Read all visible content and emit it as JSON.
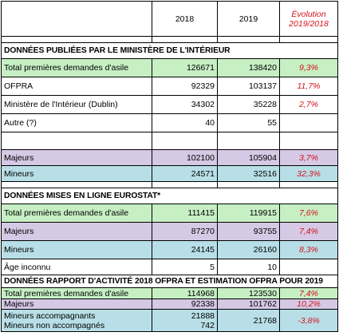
{
  "header": {
    "col_2018": "2018",
    "col_2019": "2019",
    "col_evo_line1": "Évolution",
    "col_evo_line2": "2019/2018"
  },
  "section1": {
    "title": "DONNÉES PUBLIÉES PAR LE MINISTÈRE DE L'INTÉRIEUR",
    "rows": [
      {
        "label": "Total premières demandes d'asile",
        "v2018": "126671",
        "v2019": "138420",
        "evo": "9,3%"
      },
      {
        "label": "OFPRA",
        "v2018": "92329",
        "v2019": "103137",
        "evo": "11,7%"
      },
      {
        "label": "Ministère de l'Intérieur (Dublin)",
        "v2018": "34302",
        "v2019": "35228",
        "evo": "2,7%"
      },
      {
        "label": "Autre (?)",
        "v2018": "40",
        "v2019": "55",
        "evo": ""
      },
      {
        "label": "Majeurs",
        "v2018": "102100",
        "v2019": "105904",
        "evo": "3,7%"
      },
      {
        "label": "Mineurs",
        "v2018": "24571",
        "v2019": "32516",
        "evo": "32,3%"
      }
    ]
  },
  "section2": {
    "title": "DONNÉES MISES EN LIGNE EUROSTAT*",
    "rows": [
      {
        "label": "Total premières demandes d'asile",
        "v2018": "111415",
        "v2019": "119915",
        "evo": "7,6%"
      },
      {
        "label": "Majeurs",
        "v2018": "87270",
        "v2019": "93755",
        "evo": "7,4%"
      },
      {
        "label": "Mineurs",
        "v2018": "24145",
        "v2019": "26160",
        "evo": "8,3%"
      },
      {
        "label": "Âge inconnu",
        "v2018": "5",
        "v2019": "10",
        "evo": ""
      }
    ]
  },
  "section3": {
    "title": "DONNÉES RAPPORT D'ACTIVITÉ 2018 OFPRA ET ESTIMATION OFPRA POUR 2019",
    "rows": [
      {
        "label": "Total premières demandes d'asile",
        "v2018": "114968",
        "v2019": "123530",
        "evo": "7,4%"
      },
      {
        "label": "Majeurs",
        "v2018": "92338",
        "v2019": "101762",
        "evo": "10,2%"
      }
    ],
    "minors": {
      "label1": "Mineurs accompagnants",
      "label2": "Mineurs non accompagnés",
      "v2018_1": "21888",
      "v2018_2": "742",
      "v2019": "21768",
      "evo": "-3,8%"
    }
  },
  "colors": {
    "green": "#c6efc4",
    "purple": "#d5c9e5",
    "blue": "#b8dfe7",
    "red_text": "#d4141c"
  }
}
